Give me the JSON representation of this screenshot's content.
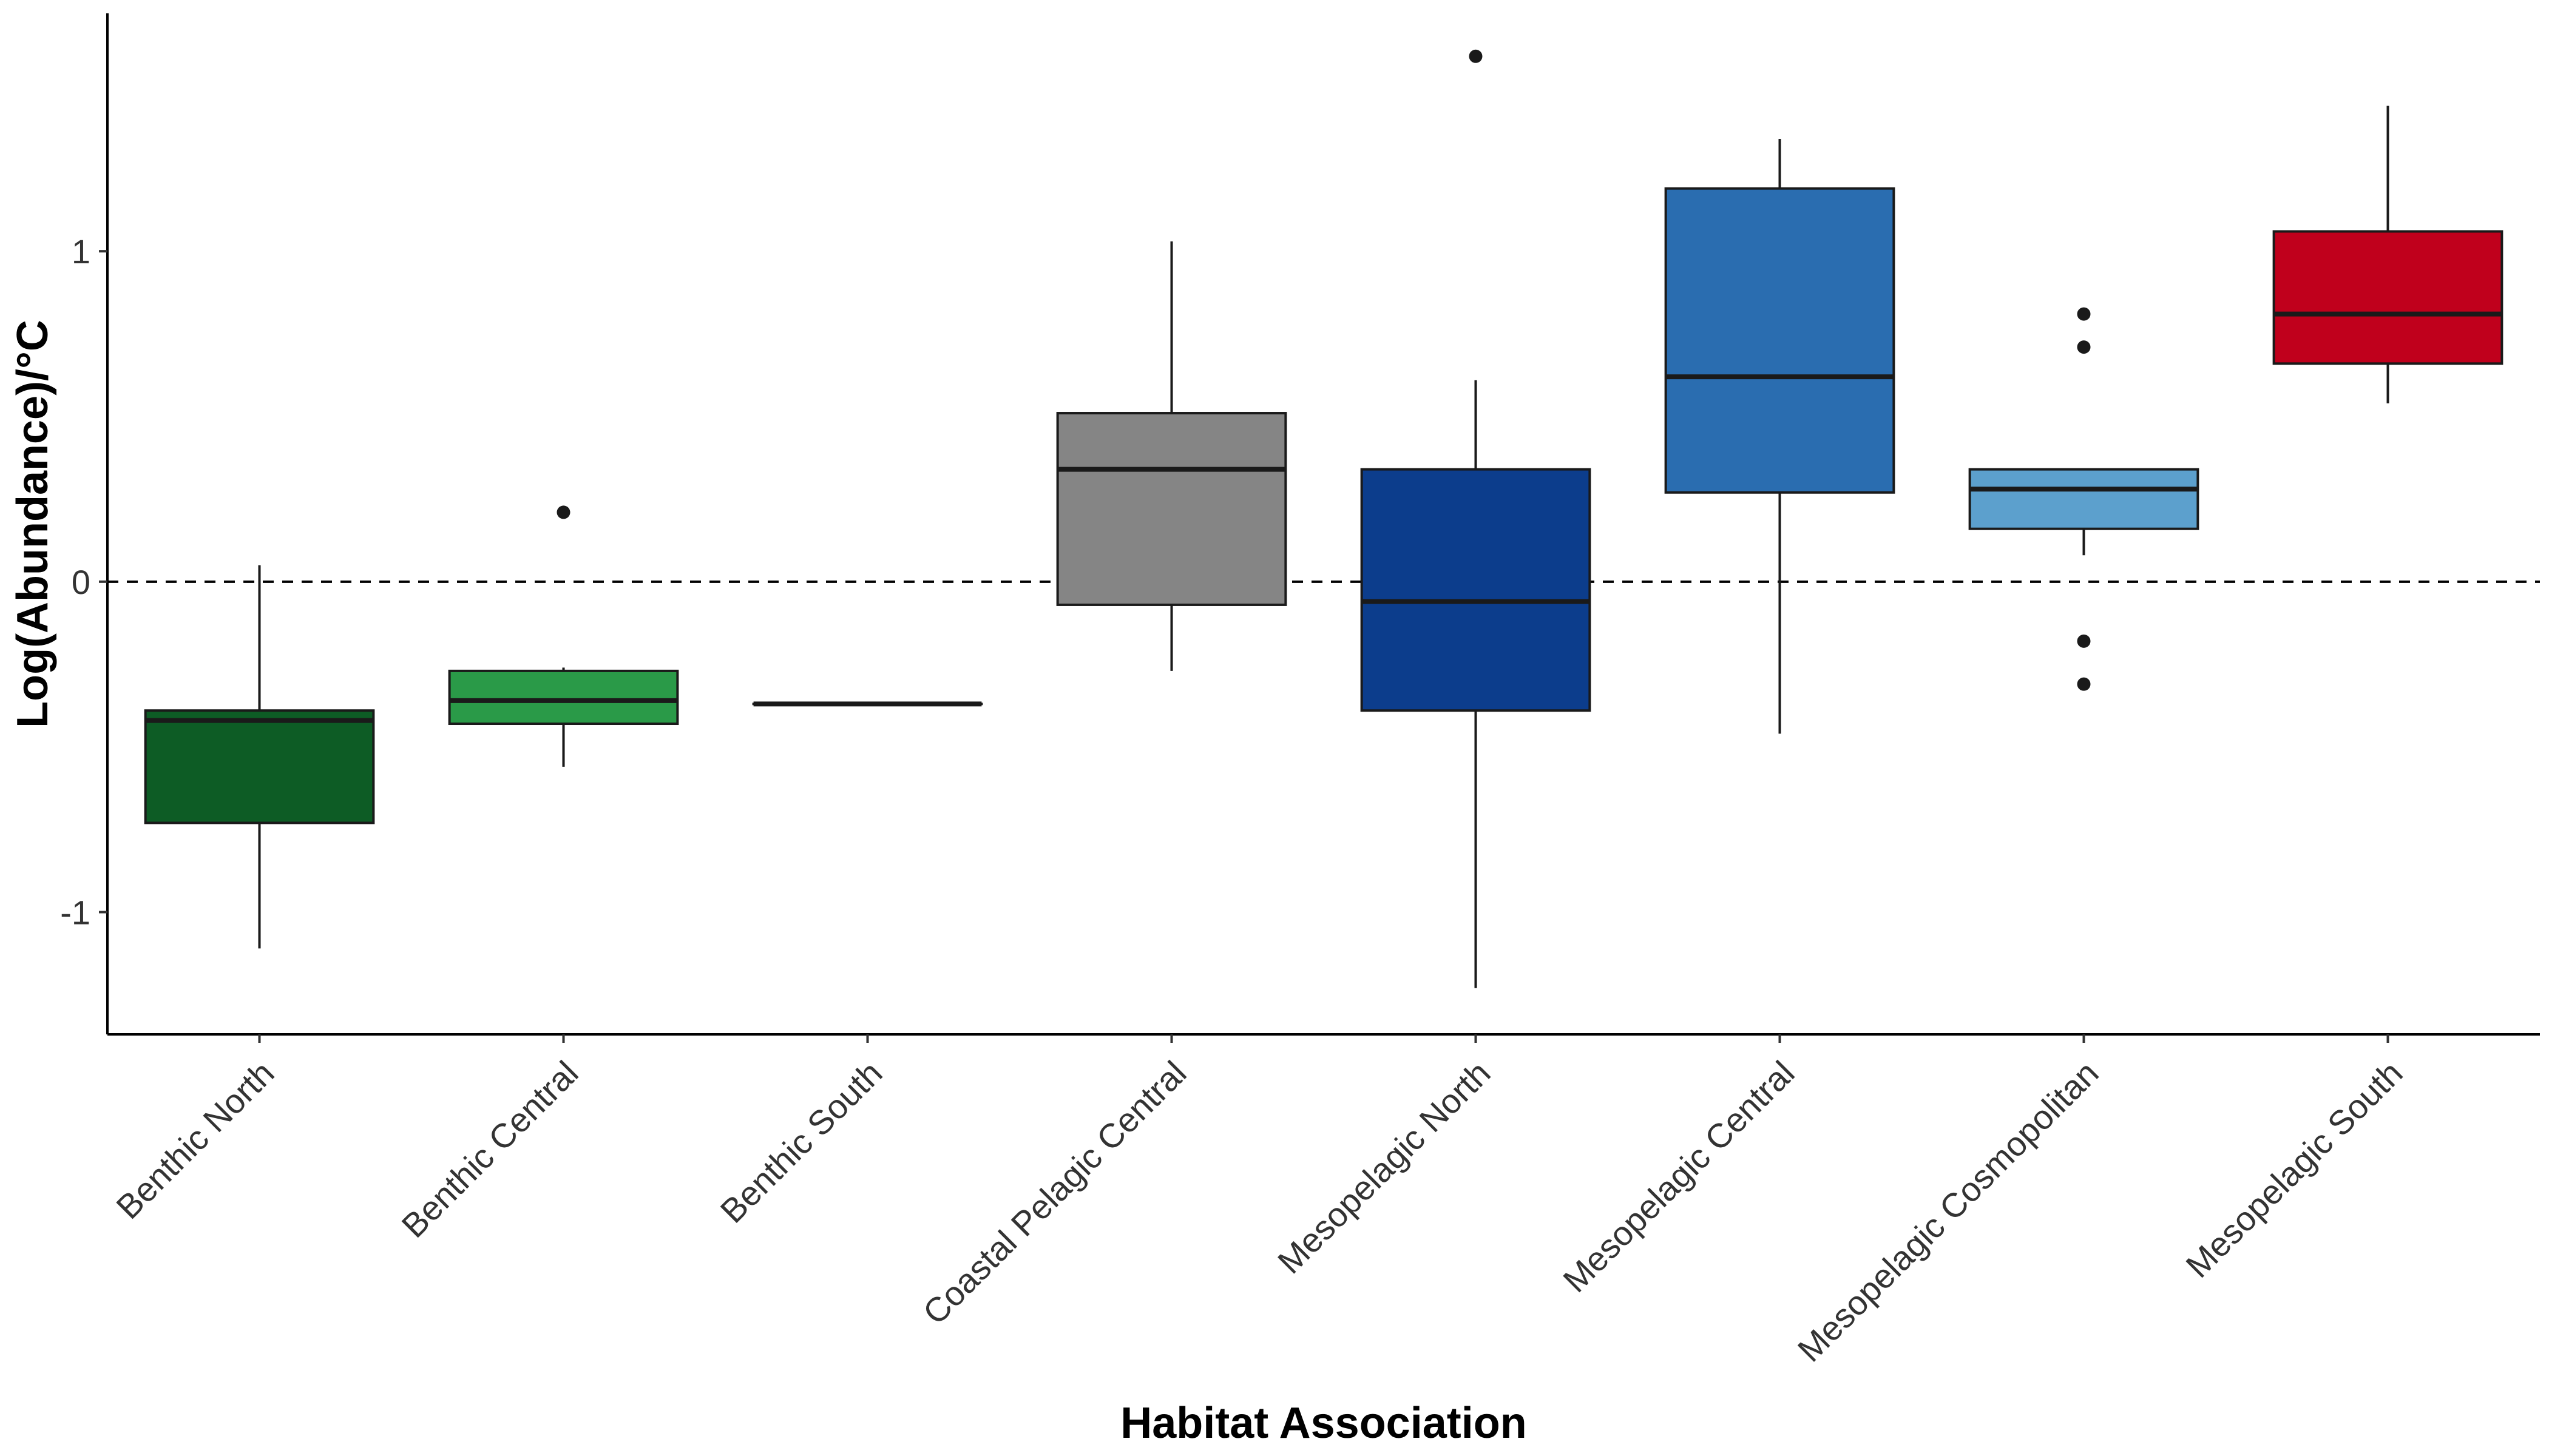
{
  "chart_data": {
    "type": "boxplot",
    "xlabel": "Habitat Association",
    "ylabel": "Log(Abundance)/°C",
    "ylim": [
      -1.37,
      1.72
    ],
    "y_ticks": [
      -1,
      0,
      1
    ],
    "y_tick_labels": [
      "-1",
      "0",
      "1"
    ],
    "reference_line": {
      "y": 0,
      "style": "dashed"
    },
    "grid": false,
    "legend": "none",
    "categories": [
      "Benthic North",
      "Benthic Central",
      "Benthic South",
      "Coastal Pelagic Central",
      "Mesopelagic North",
      "Mesopelagic Central",
      "Mesopelagic Cosmopolitan",
      "Mesopelagic South"
    ],
    "boxes": [
      {
        "category": "Benthic North",
        "whisker_low": -1.11,
        "q1": -0.73,
        "median": -0.42,
        "q3": -0.39,
        "whisker_high": 0.05,
        "outliers": [],
        "color": "#0d5c25"
      },
      {
        "category": "Benthic Central",
        "whisker_low": -0.56,
        "q1": -0.43,
        "median": -0.36,
        "q3": -0.27,
        "whisker_high": -0.26,
        "outliers": [
          0.21
        ],
        "color": "#2a9a48"
      },
      {
        "category": "Benthic South",
        "whisker_low": -0.37,
        "q1": -0.37,
        "median": -0.37,
        "q3": -0.37,
        "whisker_high": -0.37,
        "outliers": [],
        "color": "#ffffff"
      },
      {
        "category": "Coastal Pelagic Central",
        "whisker_low": -0.27,
        "q1": -0.07,
        "median": 0.34,
        "q3": 0.51,
        "whisker_high": 1.03,
        "outliers": [],
        "color": "#858585"
      },
      {
        "category": "Mesopelagic North",
        "whisker_low": -1.23,
        "q1": -0.39,
        "median": -0.06,
        "q3": 0.34,
        "whisker_high": 0.61,
        "outliers": [
          1.59
        ],
        "color": "#0c3d8c"
      },
      {
        "category": "Mesopelagic Central",
        "whisker_low": -0.46,
        "q1": 0.27,
        "median": 0.62,
        "q3": 1.19,
        "whisker_high": 1.34,
        "outliers": [],
        "color": "#2a6db0"
      },
      {
        "category": "Mesopelagic Cosmopolitan",
        "whisker_low": 0.08,
        "q1": 0.16,
        "median": 0.28,
        "q3": 0.34,
        "whisker_high": 0.34,
        "outliers": [
          0.81,
          0.71,
          -0.18,
          -0.31
        ],
        "color": "#5ca0cd"
      },
      {
        "category": "Mesopelagic South",
        "whisker_low": 0.54,
        "q1": 0.66,
        "median": 0.81,
        "q3": 1.06,
        "whisker_high": 1.44,
        "outliers": [],
        "color": "#c0001c"
      }
    ]
  }
}
